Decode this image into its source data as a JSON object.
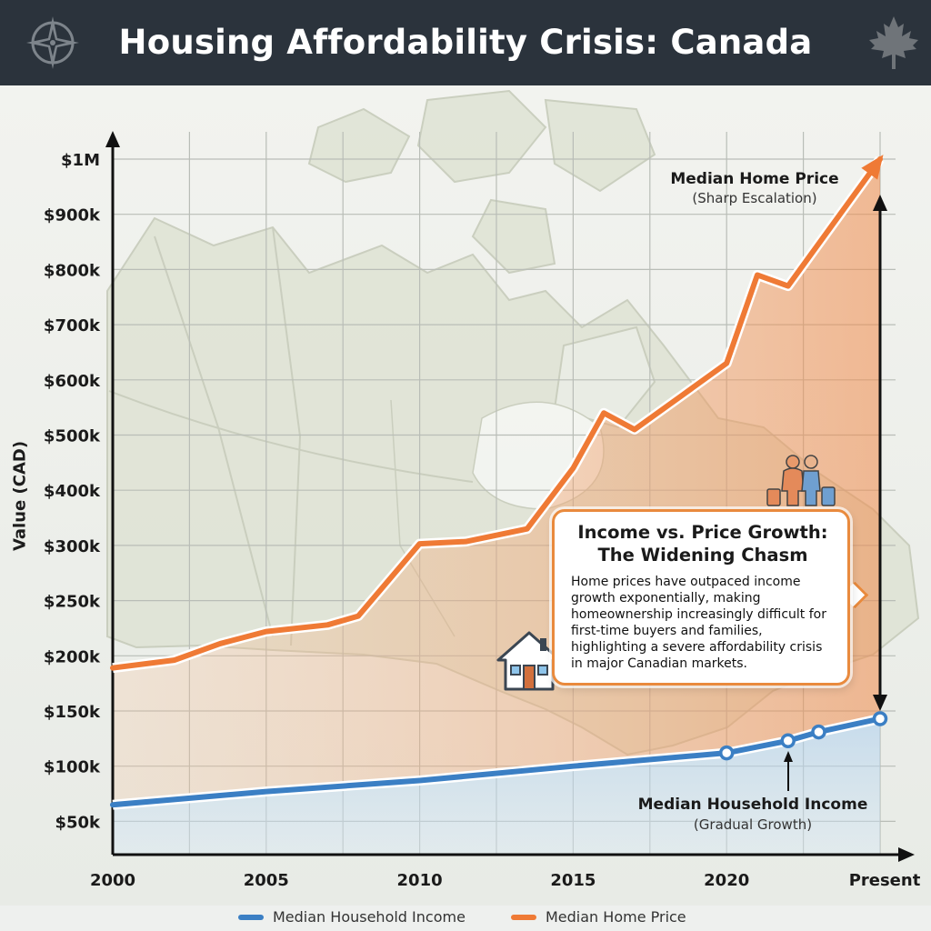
{
  "header": {
    "title": "Housing Affordability Crisis: Canada",
    "left_icon": "compass-rose-icon",
    "right_icon": "maple-leaf-icon"
  },
  "chart_data": {
    "type": "line",
    "title": "Housing Affordability Crisis: Canada",
    "xlabel": "",
    "ylabel": "Value (CAD)",
    "x_tick_labels": [
      "2000",
      "2005",
      "2010",
      "2015",
      "2020",
      "Present"
    ],
    "y_tick_labels": [
      "$50k",
      "$100k",
      "$150k",
      "$200k",
      "$250k",
      "$300k",
      "$400k",
      "$500k",
      "$600k",
      "$700k",
      "$800k",
      "$900k",
      "$1M"
    ],
    "y_tick_values": [
      50000,
      100000,
      150000,
      200000,
      250000,
      300000,
      400000,
      500000,
      600000,
      700000,
      800000,
      900000,
      1000000
    ],
    "y_scale_note": "Tick spacing is uniform although values are not linear",
    "grid": true,
    "legend_position": "bottom",
    "series": [
      {
        "name": "Median Household Income",
        "color": "#3b7fc4",
        "x": [
          "2000",
          "2005",
          "2010",
          "2015",
          "2020",
          "2022",
          "2023",
          "Present"
        ],
        "values": [
          65000,
          77000,
          87000,
          100000,
          112000,
          123000,
          131000,
          143000
        ],
        "markers": [
          false,
          false,
          false,
          false,
          true,
          true,
          true,
          true
        ]
      },
      {
        "name": "Median Home Price",
        "color": "#ef7a35",
        "x": [
          "2000",
          "2002",
          "2003.5",
          "2005",
          "2007",
          "2008",
          "2010",
          "2011.5",
          "2013.5",
          "2015",
          "2016",
          "2017",
          "2018.5",
          "2020",
          "2021",
          "2022",
          "Present"
        ],
        "values": [
          189000,
          196000,
          211000,
          222000,
          228000,
          236000,
          303000,
          307000,
          330000,
          440000,
          540000,
          510000,
          570000,
          630000,
          790000,
          770000,
          1000000
        ]
      }
    ],
    "annotations": [
      {
        "title": "Median Home Price",
        "subtitle": "(Sharp Escalation)"
      },
      {
        "title": "Median Household Income",
        "subtitle": "(Gradual Growth)"
      }
    ],
    "callout": {
      "title_line1": "Income vs. Price Growth:",
      "title_line2": "The Widening Chasm",
      "body": "Home prices have outpaced income growth exponentially, making homeownership increasingly difficult for first-time buyers and families, highlighting a severe affordability crisis in major Canadian markets."
    }
  },
  "legend": {
    "items": [
      {
        "label": "Median Household Income",
        "color": "#3b7fc4"
      },
      {
        "label": "Median Home Price",
        "color": "#ef7a35"
      }
    ]
  },
  "colors": {
    "header_bg": "#2b333c",
    "accent_orange": "#ef7a35",
    "accent_blue": "#3b7fc4",
    "map_land": "#dfe3d4"
  },
  "decorations": [
    "house-icon",
    "family-with-luggage-icon"
  ]
}
